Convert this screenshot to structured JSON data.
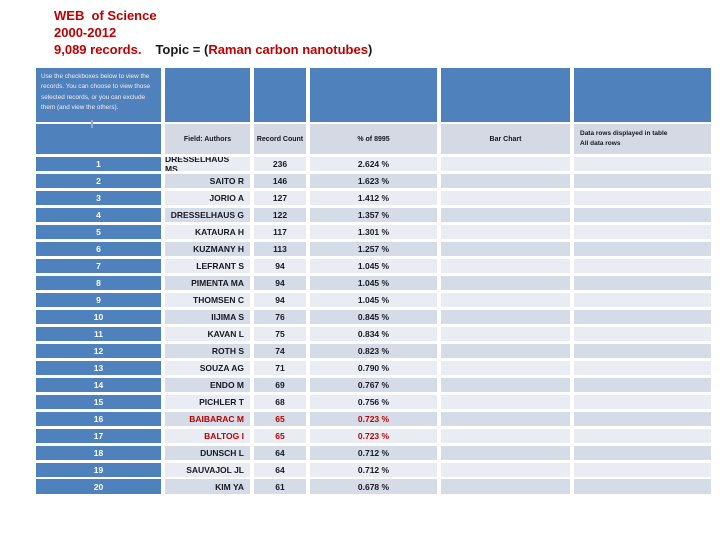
{
  "slide": {
    "title": {
      "line1": "WEB  of Science",
      "line2": "2000-2012",
      "line3_records": "9,089 records.",
      "line3_label": "Topic = (",
      "line3_topic": "Raman carbon nanotubes",
      "line3_close": ")"
    },
    "note": "Use the checkboxes below to view the records. You can choose to view those selected records, or you can exclude them (and view the others).",
    "columns": {
      "field": "Field: Authors",
      "record_count": "Record Count",
      "percent": "% of 8995",
      "bar_chart": "Bar Chart",
      "data_rows_line1": "Data rows displayed in table",
      "data_rows_line2": "All data rows"
    },
    "rows": [
      {
        "rank": "1",
        "author": "DRESSELHAUS MS",
        "count": "236",
        "percent": "2.624 %",
        "highlight": false
      },
      {
        "rank": "2",
        "author": "SAITO R",
        "count": "146",
        "percent": "1.623 %",
        "highlight": false
      },
      {
        "rank": "3",
        "author": "JORIO A",
        "count": "127",
        "percent": "1.412 %",
        "highlight": false
      },
      {
        "rank": "4",
        "author": "DRESSELHAUS G",
        "count": "122",
        "percent": "1.357 %",
        "highlight": false
      },
      {
        "rank": "5",
        "author": "KATAURA H",
        "count": "117",
        "percent": "1.301 %",
        "highlight": false
      },
      {
        "rank": "6",
        "author": "KUZMANY H",
        "count": "113",
        "percent": "1.257 %",
        "highlight": false
      },
      {
        "rank": "7",
        "author": "LEFRANT S",
        "count": "94",
        "percent": "1.045 %",
        "highlight": false
      },
      {
        "rank": "8",
        "author": "PIMENTA MA",
        "count": "94",
        "percent": "1.045 %",
        "highlight": false
      },
      {
        "rank": "9",
        "author": "THOMSEN C",
        "count": "94",
        "percent": "1.045 %",
        "highlight": false
      },
      {
        "rank": "10",
        "author": "IIJIMA S",
        "count": "76",
        "percent": "0.845 %",
        "highlight": false
      },
      {
        "rank": "11",
        "author": "KAVAN L",
        "count": "75",
        "percent": "0.834 %",
        "highlight": false
      },
      {
        "rank": "12",
        "author": "ROTH S",
        "count": "74",
        "percent": "0.823 %",
        "highlight": false
      },
      {
        "rank": "13",
        "author": "SOUZA AG",
        "count": "71",
        "percent": "0.790 %",
        "highlight": false
      },
      {
        "rank": "14",
        "author": "ENDO M",
        "count": "69",
        "percent": "0.767 %",
        "highlight": false
      },
      {
        "rank": "15",
        "author": "PICHLER T",
        "count": "68",
        "percent": "0.756 %",
        "highlight": false
      },
      {
        "rank": "16",
        "author": "BAIBARAC M",
        "count": "65",
        "percent": "0.723 %",
        "highlight": true
      },
      {
        "rank": "17",
        "author": "BALTOG I",
        "count": "65",
        "percent": "0.723 %",
        "highlight": true
      },
      {
        "rank": "18",
        "author": "DUNSCH L",
        "count": "64",
        "percent": "0.712 %",
        "highlight": false
      },
      {
        "rank": "19",
        "author": "SAUVAJOL JL",
        "count": "64",
        "percent": "0.712 %",
        "highlight": false
      },
      {
        "rank": "20",
        "author": "KIM YA",
        "count": "61",
        "percent": "0.678 %",
        "highlight": false
      }
    ],
    "colors": {
      "accent_blue": "#4f81bd",
      "title_red": "#c00000",
      "highlight_red": "#c00000",
      "row_light": "#eaecf4",
      "row_dark": "#d6dbe8",
      "header_gray": "#d4d9e4"
    }
  }
}
